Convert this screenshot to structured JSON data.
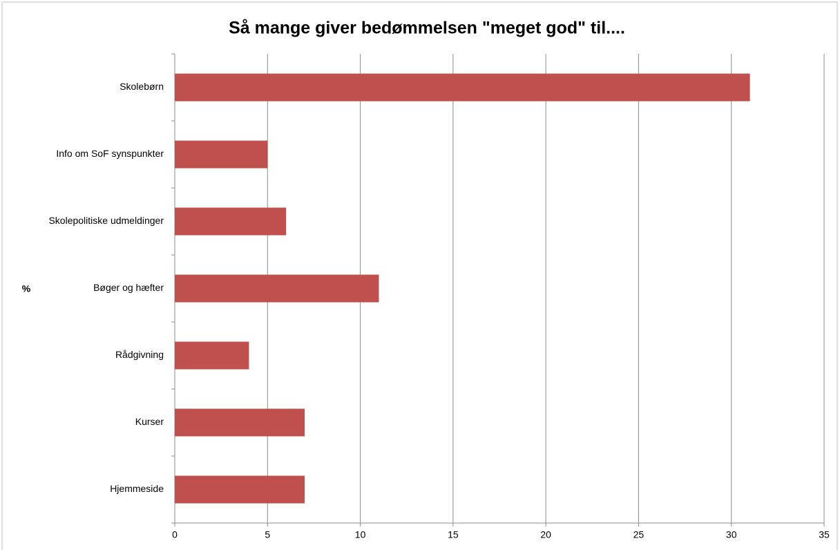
{
  "chart_data": {
    "type": "bar",
    "orientation": "horizontal",
    "title": "Så mange giver bedømmelsen \"meget god\" til....",
    "y_label": "%",
    "categories": [
      "Skolebørn",
      "Info om SoF synspunkter",
      "Skolepolitiske udmeldinger",
      "Bøger og hæfter",
      "Rådgivning",
      "Kurser",
      "Hjemmeside"
    ],
    "values": [
      31,
      5,
      6,
      11,
      4,
      7,
      7
    ],
    "color": "#c0504d",
    "xlim": [
      0,
      35
    ],
    "xticks": [
      0,
      5,
      10,
      15,
      20,
      25,
      30,
      35
    ],
    "grid": true
  }
}
